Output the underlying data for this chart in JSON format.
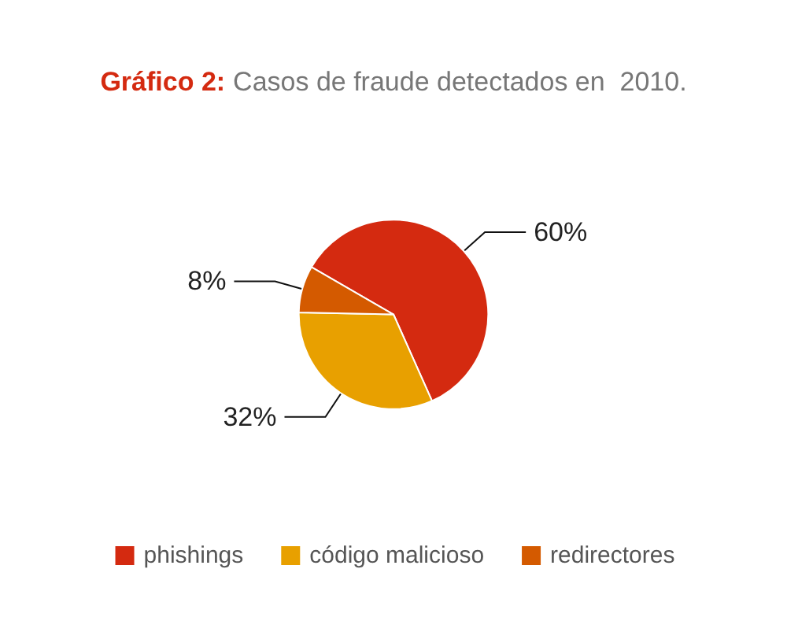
{
  "chart_data": {
    "type": "pie",
    "title": "Gráfico 2:",
    "subtitle": "Casos de fraude detectados en  2010.",
    "categories": [
      "phishings",
      "código malicioso",
      "redirectores"
    ],
    "values": [
      60,
      32,
      8
    ],
    "colors": [
      "#d42a10",
      "#e8a000",
      "#d45a00"
    ],
    "value_labels": [
      "60%",
      "32%",
      "8%"
    ],
    "legend": "bottom"
  }
}
